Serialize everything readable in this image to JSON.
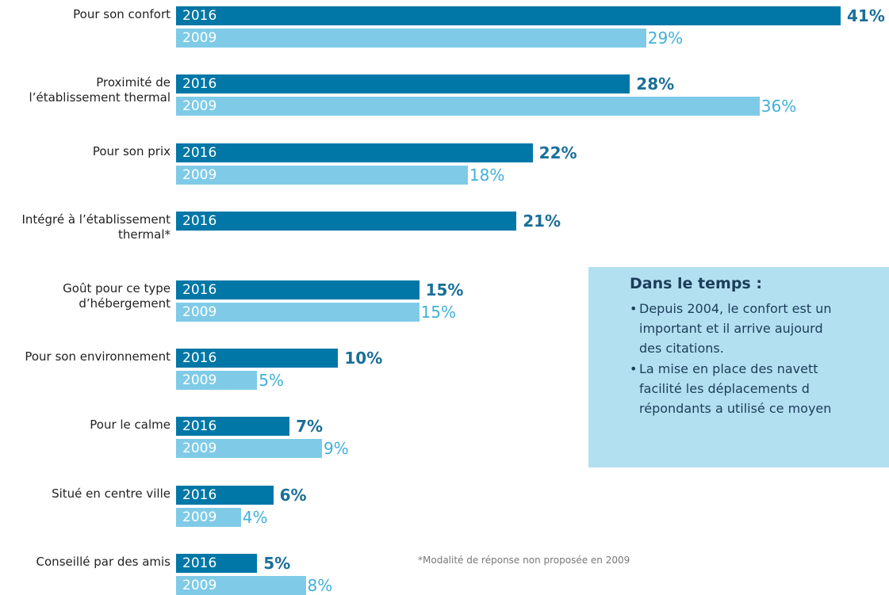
{
  "chart_data": {
    "type": "bar",
    "orientation": "horizontal",
    "categories": [
      "Pour son confort",
      "Proximité de\nl’établissement thermal",
      "Pour son prix",
      "Intégré à l’établissement\nthermal*",
      "Goût pour ce type\nd’hébergement",
      "Pour son environnement",
      "Pour le calme",
      "Situé en centre ville",
      "Conseillé par des amis"
    ],
    "series": [
      {
        "name": "2016",
        "color": "#0077a6",
        "label_color": "#1a6f99",
        "values": [
          41,
          28,
          22,
          21,
          15,
          10,
          7,
          6,
          5
        ],
        "value_labels": [
          "41%",
          "28%",
          "22%",
          "21%",
          "15%",
          "10%",
          "7%",
          "6%",
          "5%"
        ]
      },
      {
        "name": "2009",
        "color": "#7fcbe7",
        "label_color": "#3fb0d9",
        "values": [
          29,
          36,
          18,
          null,
          15,
          5,
          9,
          4,
          8
        ],
        "value_labels": [
          "29%",
          "36%",
          "18%",
          null,
          "15%",
          "5%",
          "9%",
          "4%",
          "8%"
        ]
      }
    ],
    "footnote": "*Modalité de réponse non proposée en 2009"
  },
  "textbox": {
    "title": "Dans le temps :",
    "bullets": [
      [
        "Depuis 2004, le confort est un",
        "important et il arrive aujourd",
        "des citations."
      ],
      [
        "La mise en place des navett",
        "facilité les déplacements d",
        "répondants a utilisé ce moyen"
      ]
    ]
  }
}
